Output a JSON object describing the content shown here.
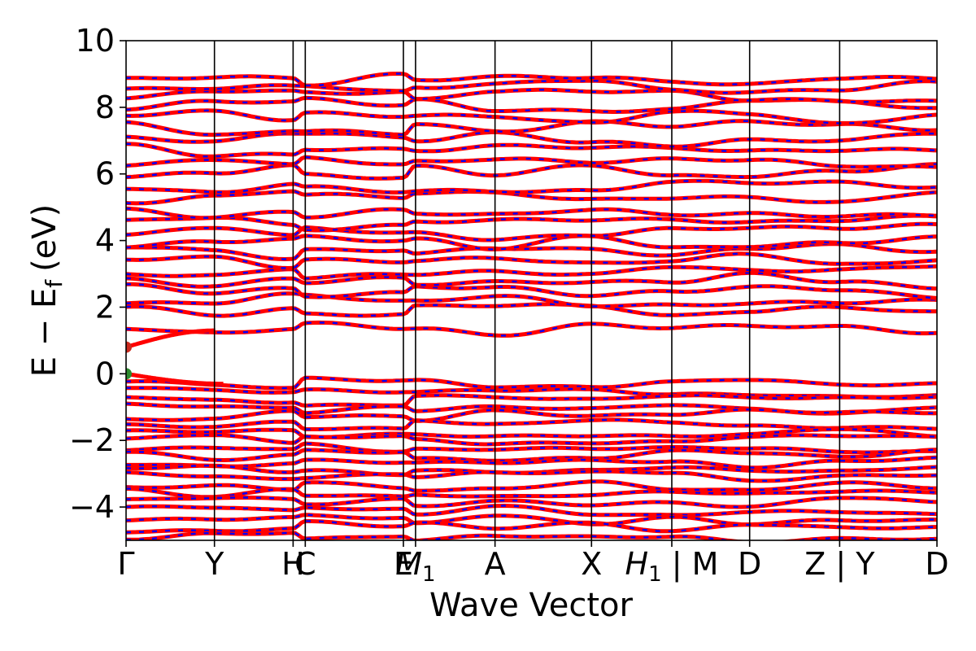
{
  "chart_data": {
    "type": "line",
    "xlabel": "Wave Vector",
    "ylabel": "E − E",
    "ylabel_sub": "f",
    "ylabel_unit": "(eV)",
    "ylim": [
      -5,
      10
    ],
    "yticks": [
      {
        "value": 10,
        "label": "10"
      },
      {
        "value": 8,
        "label": "8"
      },
      {
        "value": 6,
        "label": "6"
      },
      {
        "value": 4,
        "label": "4"
      },
      {
        "value": 2,
        "label": "2"
      },
      {
        "value": 0,
        "label": "0"
      },
      {
        "value": -2,
        "label": "−2"
      },
      {
        "value": -4,
        "label": "−4"
      }
    ],
    "xlim": [
      0,
      1
    ],
    "kpoints": [
      {
        "label": "Γ",
        "x": 0.0
      },
      {
        "label": "Y",
        "x": 0.109
      },
      {
        "label": "H",
        "x": 0.206
      },
      {
        "label": "C",
        "x": 0.221
      },
      {
        "label": "E",
        "x": 0.342
      },
      {
        "label": "M",
        "sub": "1",
        "x": 0.357
      },
      {
        "label": "A",
        "x": 0.455
      },
      {
        "label": "X",
        "x": 0.574
      },
      {
        "label": "H",
        "sub": "1",
        "suffix": " | M",
        "x": 0.673
      },
      {
        "label": "D",
        "x": 0.769
      },
      {
        "label": "Z | Y",
        "x": 0.88
      },
      {
        "label": "D",
        "x": 1.0
      }
    ],
    "series": [
      {
        "color": "#ff0000",
        "style": "solid"
      },
      {
        "color": "#0000ff",
        "style": "dashed"
      }
    ],
    "conduction_band_levels": [
      1.3,
      1.9,
      2.2,
      2.45,
      2.8,
      3.1,
      3.4,
      3.65,
      3.95,
      4.25,
      4.55,
      4.85,
      5.3,
      5.65,
      6.05,
      6.35,
      6.75,
      7.05,
      7.35,
      7.7,
      8.05,
      8.35,
      8.65,
      8.85
    ],
    "valence_band_levels": [
      -0.3,
      -0.55,
      -0.8,
      -1.05,
      -1.25,
      -1.5,
      -1.75,
      -1.95,
      -2.2,
      -2.45,
      -2.65,
      -2.9,
      -3.1,
      -3.35,
      -3.6,
      -3.85,
      -4.1,
      -4.35,
      -4.6,
      -4.9
    ],
    "markers": [
      {
        "x": 0.0,
        "y": 0.8,
        "color": "#cc2a1e"
      },
      {
        "x": 0.0,
        "y": 0.0,
        "color": "#2e8b2e"
      }
    ]
  }
}
